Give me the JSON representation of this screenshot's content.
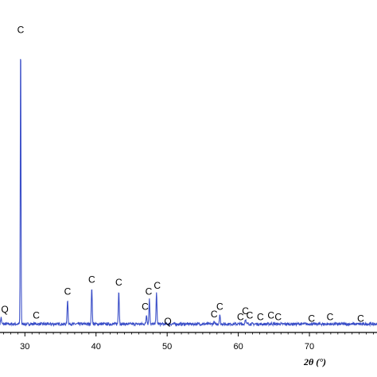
{
  "chart_data": {
    "type": "line",
    "xlabel": "2θ (°)",
    "ylabel": "",
    "title": "",
    "xlim": [
      26.5,
      79.5
    ],
    "ylim": [
      0,
      100
    ],
    "x_ticks": [
      30,
      40,
      50,
      60,
      70
    ],
    "x_tick_labels": [
      "30",
      "40",
      "50",
      "60",
      "70"
    ],
    "grid": false,
    "line_color": "#3b4fc8",
    "baseline_level": 2.8,
    "peaks": [
      {
        "label": "Q",
        "x": 26.65,
        "y": 5.0
      },
      {
        "label": "C",
        "x": 29.4,
        "y": 98.0
      },
      {
        "label": "C",
        "x": 31.4,
        "y": 3.0
      },
      {
        "label": "C",
        "x": 36.0,
        "y": 11.0
      },
      {
        "label": "C",
        "x": 39.4,
        "y": 15.0
      },
      {
        "label": "C",
        "x": 43.2,
        "y": 14.0
      },
      {
        "label": "C",
        "x": 47.1,
        "y": 6.0
      },
      {
        "label": "C",
        "x": 47.5,
        "y": 11.0
      },
      {
        "label": "C",
        "x": 48.5,
        "y": 13.0
      },
      {
        "label": "Q",
        "x": 50.1,
        "y": 1.0
      },
      {
        "label": "C",
        "x": 56.6,
        "y": 3.5
      },
      {
        "label": "C",
        "x": 57.4,
        "y": 6.0
      },
      {
        "label": "C",
        "x": 60.7,
        "y": 2.5
      },
      {
        "label": "C",
        "x": 61.0,
        "y": 4.5
      },
      {
        "label": "C",
        "x": 61.4,
        "y": 3.0
      },
      {
        "label": "C",
        "x": 63.1,
        "y": 2.5
      },
      {
        "label": "C",
        "x": 64.7,
        "y": 3.0
      },
      {
        "label": "C",
        "x": 65.6,
        "y": 2.5
      },
      {
        "label": "C",
        "x": 70.3,
        "y": 2.0
      },
      {
        "label": "C",
        "x": 72.9,
        "y": 2.5
      },
      {
        "label": "C",
        "x": 77.1,
        "y": 2.0
      }
    ],
    "label_positions": [
      {
        "label": "Q",
        "x": 26.4
      },
      {
        "label": "C",
        "x": 29.4
      },
      {
        "label": "C",
        "x": 31.6
      },
      {
        "label": "C",
        "x": 36.0
      },
      {
        "label": "C",
        "x": 39.4
      },
      {
        "label": "C",
        "x": 43.2
      },
      {
        "label": "C",
        "x": 46.9
      },
      {
        "label": "C",
        "x": 47.4
      },
      {
        "label": "C",
        "x": 48.6
      },
      {
        "label": "Q",
        "x": 50.1
      },
      {
        "label": "C",
        "x": 56.6
      },
      {
        "label": "C",
        "x": 57.4
      },
      {
        "label": "C",
        "x": 60.3
      },
      {
        "label": "C",
        "x": 61.0
      },
      {
        "label": "C",
        "x": 61.6
      },
      {
        "label": "C",
        "x": 63.1
      },
      {
        "label": "C",
        "x": 64.6
      },
      {
        "label": "C",
        "x": 65.6
      },
      {
        "label": "C",
        "x": 70.3
      },
      {
        "label": "C",
        "x": 72.9
      },
      {
        "label": "C",
        "x": 77.2
      }
    ]
  }
}
